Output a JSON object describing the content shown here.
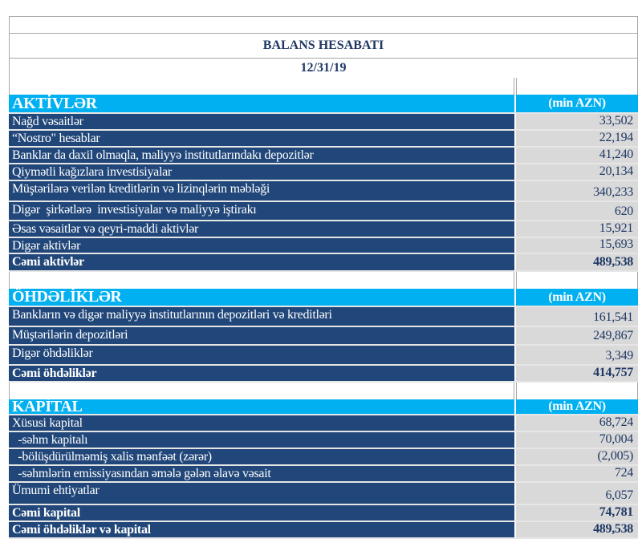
{
  "title": "BALANS HESABATI",
  "date": "12/31/19",
  "colors": {
    "section_header": "#00b0f0",
    "row_label_bg": "#21477a",
    "value_bg": "#d9d9d9",
    "title_text": "#1f3864"
  },
  "sections": [
    {
      "heading": "AKTİVLƏR",
      "unit": "(min AZN)",
      "rows": [
        {
          "label": "Nağd vəsaitlər",
          "value": "33,502"
        },
        {
          "label": "“Nostro\" hesablar",
          "value": "22,194"
        },
        {
          "label": "Banklar da daxil olmaqla, maliyyə institutlarındakı depozitlər",
          "value": "41,240"
        },
        {
          "label": "Qiymətli kağızlara investisiyalar",
          "value": "20,134"
        },
        {
          "label": "Müştərilərə verilən kreditlərin və lizinqlərin məbləği",
          "value": "340,233"
        },
        {
          "label": "Digər  şirkətlərə  investisiyalar və maliyyə iştirakı",
          "value": "620"
        },
        {
          "label": "Əsas vəsaitlər və qeyri-maddi aktivlər",
          "value": "15,921"
        },
        {
          "label": "Digər aktivlər",
          "value": "15,693"
        },
        {
          "label": "Cəmi aktivlər",
          "value": "489,538",
          "total": true
        }
      ]
    },
    {
      "heading": "ÖHDƏLİKLƏR",
      "unit": "(min AZN)",
      "rows": [
        {
          "label": "Bankların və digər maliyyə institutlarının depozitləri və kreditləri",
          "value": "161,541"
        },
        {
          "label": "Müştərilərin depozitləri",
          "value": "249,867"
        },
        {
          "label": "Digər öhdəliklər",
          "value": "3,349"
        },
        {
          "label": "Cəmi öhdəliklər",
          "value": "414,757",
          "total": true
        }
      ]
    },
    {
      "heading": "KAPİTAL",
      "unit": "(min AZN)",
      "rows": [
        {
          "label": "Xüsusi kapital",
          "value": "68,724"
        },
        {
          "label": "  -səhm kapitalı",
          "value": "70,004"
        },
        {
          "label": "  -bölüşdürülməmiş xalis mənfəət (zərər)",
          "value": "(2,005)"
        },
        {
          "label": "  -səhmlərin emissiyasından əmələ gələn əlavə vəsait",
          "value": "724"
        },
        {
          "label": "Ümumi ehtiyatlar",
          "value": "6,057"
        },
        {
          "label": "Cəmi kapital",
          "value": "74,781",
          "total": true
        },
        {
          "label": "Cəmi öhdəliklər və kapital",
          "value": "489,538",
          "total": true
        }
      ]
    }
  ]
}
